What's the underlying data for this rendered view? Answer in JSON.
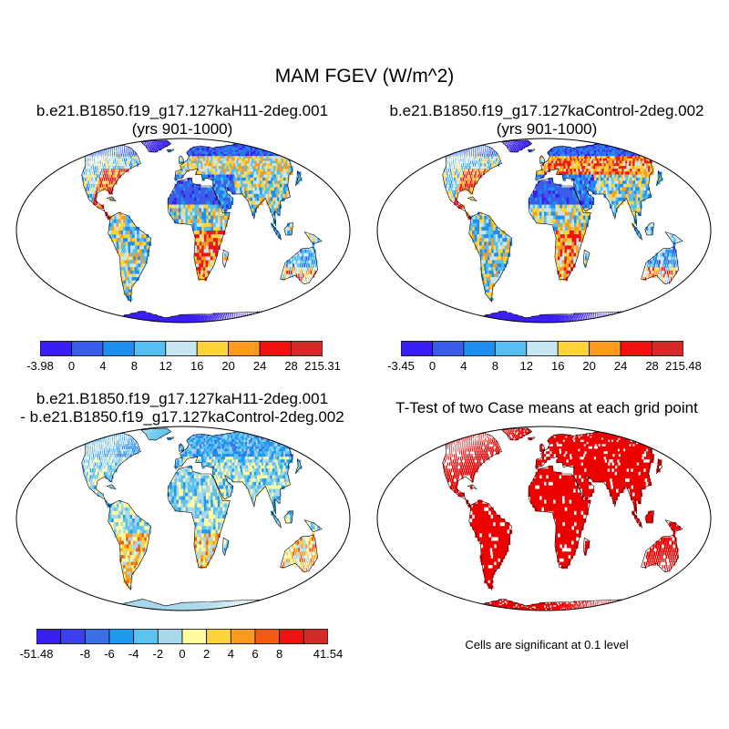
{
  "title": "MAM FGEV (W/m^2)",
  "panels": [
    {
      "title_line1": "b.e21.B1850.f19_g17.127kaH11-2deg.001",
      "title_line2": "(yrs 901-1000)"
    },
    {
      "title_line1": "b.e21.B1850.f19_g17.127kaControl-2deg.002",
      "title_line2": "(yrs 901-1000)"
    },
    {
      "title_line1": "b.e21.B1850.f19_g17.127kaH11-2deg.001",
      "title_line2": "- b.e21.B1850.f19_g17.127kaControl-2deg.002"
    },
    {
      "title_line1": "T-Test of two Case means at each grid point",
      "title_line2": ""
    }
  ],
  "colorbars": [
    {
      "colors": [
        "#3a1ff2",
        "#3b5ce8",
        "#1e8ff0",
        "#56bfef",
        "#c8e6f2",
        "#fcd33a",
        "#fb9a1f",
        "#f21010",
        "#d42a2a"
      ],
      "labels": [
        "-3.98",
        "0",
        "4",
        "8",
        "12",
        "16",
        "20",
        "24",
        "28",
        "215.31"
      ]
    },
    {
      "colors": [
        "#3a1ff2",
        "#3b5ce8",
        "#1e8ff0",
        "#56bfef",
        "#c8e6f2",
        "#fcd33a",
        "#fb9a1f",
        "#f21010",
        "#d42a2a"
      ],
      "labels": [
        "-3.45",
        "0",
        "4",
        "8",
        "12",
        "16",
        "20",
        "24",
        "28",
        "215.48"
      ]
    },
    {
      "colors": [
        "#3a1ff2",
        "#3b3ff0",
        "#3b6fe8",
        "#1e9af0",
        "#5ec2ee",
        "#a8d8ea",
        "#fffba0",
        "#fcd33a",
        "#fb9a1f",
        "#f55a14",
        "#f21010",
        "#d42a2a"
      ],
      "labels": [
        "-51.48",
        "",
        "-8",
        "-6",
        "-4",
        "-2",
        "0",
        "2",
        "4",
        "6",
        "8",
        "",
        "41.54"
      ]
    }
  ],
  "significance_note": "Cells are significant at 0.1 level",
  "colors": {
    "significant": "#ee0000",
    "ocean": "#ffffff",
    "coast": "#000000"
  }
}
